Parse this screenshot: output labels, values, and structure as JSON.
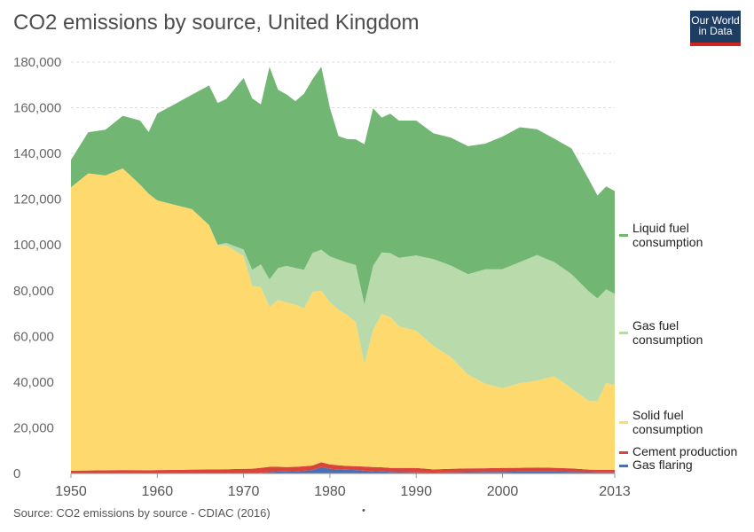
{
  "title": "CO2 emissions by source, United Kingdom",
  "logo": {
    "line1": "Our World",
    "line2": "in Data"
  },
  "footer": {
    "source": "Source: CO2 emissions by source - CDIAC (2016)",
    "dot": "•"
  },
  "chart_data": {
    "type": "area",
    "stacked": true,
    "title": "CO2 emissions by source, United Kingdom",
    "xlim": [
      1950,
      2013
    ],
    "ylim": [
      0,
      180000
    ],
    "x_ticks": [
      "1950",
      "1960",
      "1970",
      "1980",
      "1990",
      "2000",
      "2013"
    ],
    "y_ticks": [
      "0",
      "20,000",
      "40,000",
      "60,000",
      "80,000",
      "100,000",
      "120,000",
      "140,000",
      "160,000",
      "180,000"
    ],
    "grid": true,
    "legend_position": "right",
    "x": [
      1950,
      1952,
      1954,
      1956,
      1958,
      1959,
      1960,
      1962,
      1964,
      1966,
      1967,
      1968,
      1970,
      1971,
      1972,
      1973,
      1974,
      1975,
      1976,
      1977,
      1978,
      1979,
      1980,
      1981,
      1982,
      1983,
      1984,
      1985,
      1986,
      1987,
      1988,
      1990,
      1992,
      1994,
      1996,
      1998,
      2000,
      2002,
      2004,
      2006,
      2008,
      2010,
      2011,
      2012,
      2013
    ],
    "series": [
      {
        "name": "Gas flaring",
        "color": "#4c6fb1",
        "values": [
          0,
          0,
          0,
          0,
          0,
          0,
          0,
          0,
          0,
          0,
          0,
          0,
          0,
          0,
          300,
          600,
          800,
          900,
          1000,
          1200,
          1500,
          2800,
          2000,
          1800,
          1600,
          1500,
          1200,
          1000,
          900,
          700,
          600,
          500,
          400,
          500,
          600,
          700,
          700,
          800,
          800,
          800,
          700,
          600,
          500,
          500,
          500
        ]
      },
      {
        "name": "Cement production",
        "color": "#d9443b",
        "values": [
          1200,
          1300,
          1400,
          1500,
          1450,
          1400,
          1500,
          1550,
          1700,
          1750,
          1800,
          1850,
          2000,
          2100,
          2200,
          2300,
          2100,
          1900,
          1900,
          1950,
          2000,
          2100,
          2000,
          1800,
          1700,
          1700,
          1800,
          1800,
          1800,
          1700,
          1800,
          1900,
          1400,
          1500,
          1600,
          1600,
          1700,
          1700,
          1800,
          1700,
          1500,
          1100,
          1100,
          1100,
          1100
        ]
      },
      {
        "name": "Solid fuel consumption",
        "color": "#fed96e",
        "values": [
          124000,
          130000,
          129000,
          132000,
          125000,
          121000,
          118000,
          116000,
          114000,
          107000,
          98000,
          98000,
          93000,
          80000,
          79000,
          70000,
          73000,
          72000,
          71000,
          69000,
          76000,
          75000,
          71000,
          68000,
          66000,
          63000,
          45000,
          60000,
          67000,
          66000,
          62000,
          60000,
          54000,
          49000,
          41000,
          37000,
          35000,
          37000,
          38000,
          40000,
          35000,
          30000,
          30000,
          38000,
          37000
        ]
      },
      {
        "name": "Gas fuel consumption",
        "color": "#b9dbab",
        "values": [
          0,
          0,
          0,
          0,
          0,
          0,
          0,
          0,
          0,
          0,
          300,
          1000,
          3000,
          7000,
          10000,
          12000,
          14000,
          16000,
          16000,
          17000,
          17000,
          18000,
          20000,
          22000,
          23000,
          25000,
          26000,
          28000,
          27000,
          28000,
          30000,
          33000,
          38000,
          40000,
          44000,
          50000,
          52000,
          53000,
          55000,
          50000,
          50000,
          48000,
          45000,
          41000,
          40000
        ]
      },
      {
        "name": "Liquid fuel consumption",
        "color": "#71b673",
        "values": [
          12000,
          18000,
          20000,
          23000,
          28000,
          27000,
          38000,
          44000,
          50000,
          61000,
          62000,
          63000,
          75000,
          75000,
          70000,
          93000,
          78000,
          75000,
          73000,
          77000,
          76000,
          80000,
          65000,
          54000,
          54000,
          55000,
          70000,
          69000,
          59000,
          61000,
          60000,
          59000,
          55000,
          56000,
          56000,
          55000,
          58000,
          59000,
          55000,
          54000,
          55000,
          49000,
          45000,
          45000,
          45000
        ]
      }
    ]
  }
}
